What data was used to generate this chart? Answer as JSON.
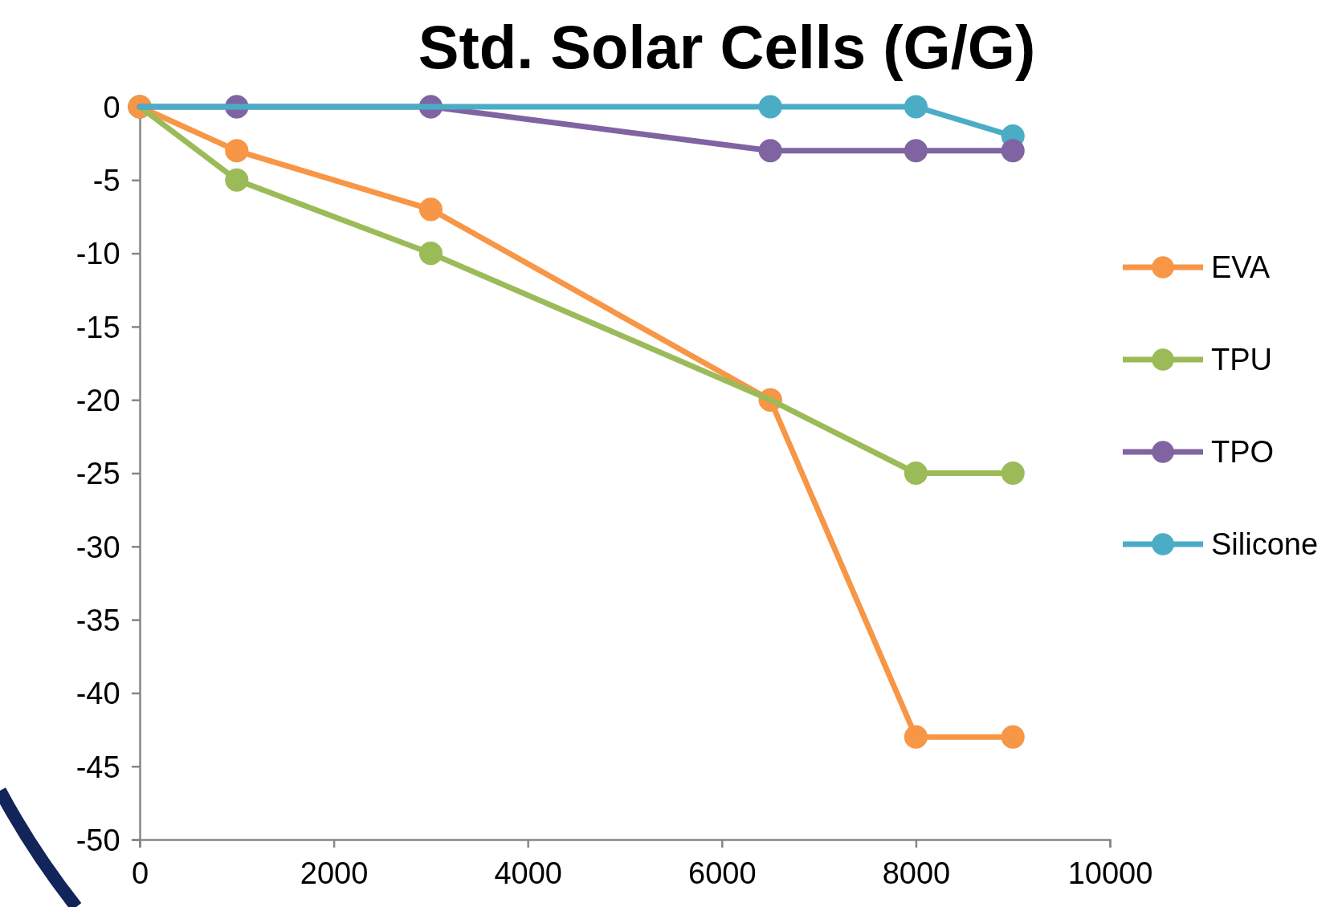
{
  "chart_data": {
    "type": "line",
    "title": "Std. Solar Cells (G/G)",
    "x": [
      0,
      1000,
      3000,
      6500,
      8000,
      9000
    ],
    "series": [
      {
        "name": "EVA",
        "color": "#f79646",
        "values": [
          0,
          -3,
          -7,
          -20,
          -43,
          -43
        ]
      },
      {
        "name": "TPU",
        "color": "#9bbb59",
        "values": [
          0,
          -5,
          -10,
          -20,
          -25,
          -25
        ]
      },
      {
        "name": "TPO",
        "color": "#8064a2",
        "values": [
          0,
          0,
          0,
          -3,
          -3,
          -3
        ]
      },
      {
        "name": "Silicone",
        "color": "#4bacc6",
        "values": [
          0,
          0,
          0,
          0,
          0,
          -2
        ]
      }
    ],
    "xlim": [
      0,
      10000
    ],
    "xticks": [
      0,
      2000,
      4000,
      6000,
      8000,
      10000
    ],
    "ylim": [
      -50,
      0
    ],
    "yticks": [
      -50,
      -45,
      -40,
      -35,
      -30,
      -25,
      -20,
      -15,
      -10,
      -5,
      0
    ],
    "grid": false,
    "legend": "right",
    "marker": "circle",
    "line_style": "solid"
  }
}
